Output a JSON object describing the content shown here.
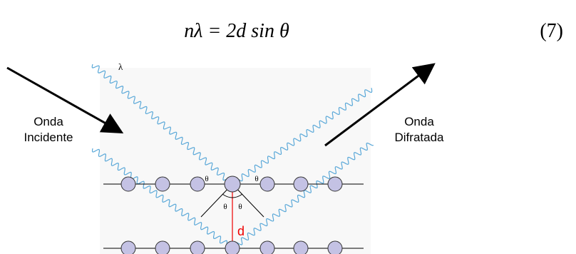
{
  "equation": "nλ = 2d sin θ",
  "equation_number": "(7)",
  "incident_label": [
    "Onda",
    "Incidente"
  ],
  "diffracted_label": [
    "Onda",
    "Difratada"
  ],
  "wavelength_label": "λ",
  "angle_labels": [
    "θ",
    "θ",
    "θ",
    "θ"
  ],
  "spacing_label": "d"
}
